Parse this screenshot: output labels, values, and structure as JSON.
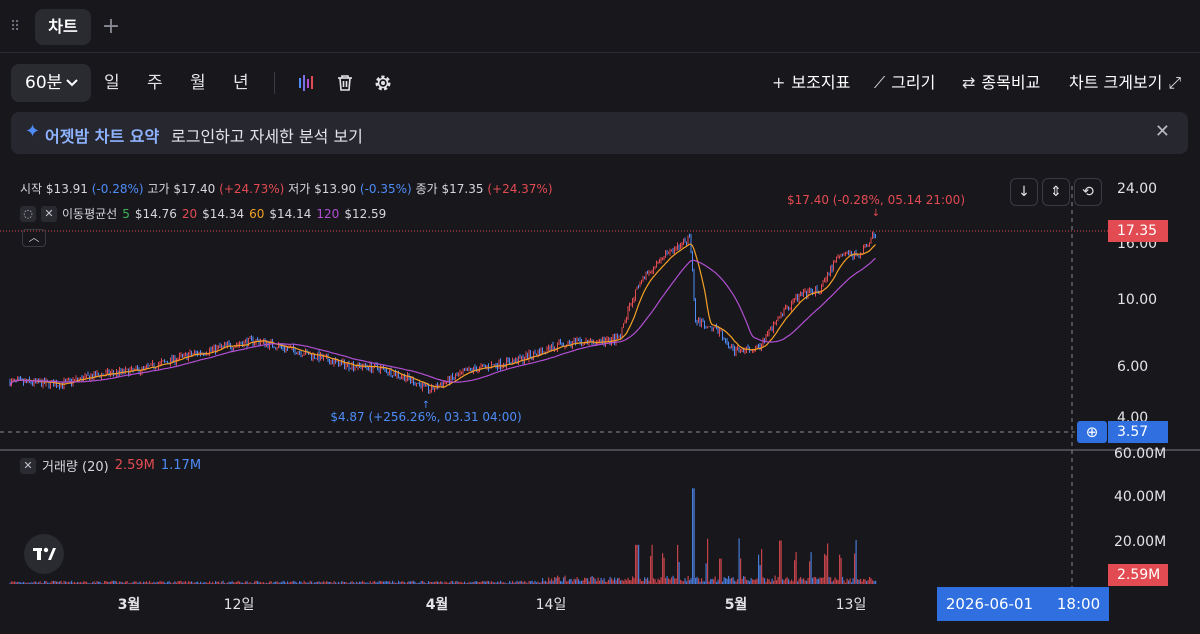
{
  "tabs": {
    "active_label": "차트",
    "add_symbol": "+"
  },
  "toolbar": {
    "interval": "60분",
    "periods": [
      "일",
      "주",
      "월",
      "년"
    ],
    "indicators_label": "보조지표",
    "draw_label": "그리기",
    "compare_label": "종목비교",
    "fullscreen_label": "차트 크게보기"
  },
  "banner": {
    "title": "어젯밤 차트 요약",
    "description": "로그인하고 자세한 분석 보기"
  },
  "ohlc": {
    "open_label": "시작",
    "open": "$13.91",
    "open_chg": "(-0.28%)",
    "high_label": "고가",
    "high": "$17.40",
    "high_chg": "(+24.73%)",
    "low_label": "저가",
    "low": "$13.90",
    "low_chg": "(-0.35%)",
    "close_label": "종가",
    "close": "$17.35",
    "close_chg": "(+24.37%)"
  },
  "ma": {
    "label": "이동평균선",
    "p5": "5",
    "v5": "$14.76",
    "p20": "20",
    "v20": "$14.34",
    "p60": "60",
    "v60": "$14.14",
    "p120": "120",
    "v120": "$12.59"
  },
  "volume": {
    "label": "거래량 (20)",
    "value": "2.59M",
    "ma_value": "1.17M"
  },
  "annotations": {
    "high_note": "$17.40 (-0.28%, 05.14 21:00)",
    "low_note": "$4.87 (+256.26%, 03.31 04:00)"
  },
  "price_axis": {
    "ticks": [
      "24.00",
      "16.00",
      "10.00",
      "6.00",
      "4.00"
    ],
    "current_price": "17.35",
    "crosshair_price": "3.57"
  },
  "volume_axis": {
    "ticks": [
      "60.00M",
      "40.00M",
      "20.00M"
    ],
    "current_volume": "2.59M"
  },
  "time_axis": {
    "labels": [
      "3월",
      "12일",
      "4월",
      "14일",
      "5월",
      "13일"
    ],
    "crosshair_date": "2026-06-01",
    "crosshair_time": "18:00"
  },
  "colors": {
    "background": "#17171c",
    "up": "#e24b52",
    "down": "#4f8cf7",
    "ma5": "#3fb45b",
    "ma20": "#e24b52",
    "ma60": "#f5a125",
    "ma120": "#b14fd2",
    "accent": "#2f6fe0"
  },
  "icons": {
    "drag": "drag-handle-icon",
    "chart_type": "candlestick-icon",
    "delete": "trash-icon",
    "settings": "gear-icon",
    "sparkle": "sparkle-icon",
    "close": "close-icon",
    "logo": "tradingview-logo"
  }
}
